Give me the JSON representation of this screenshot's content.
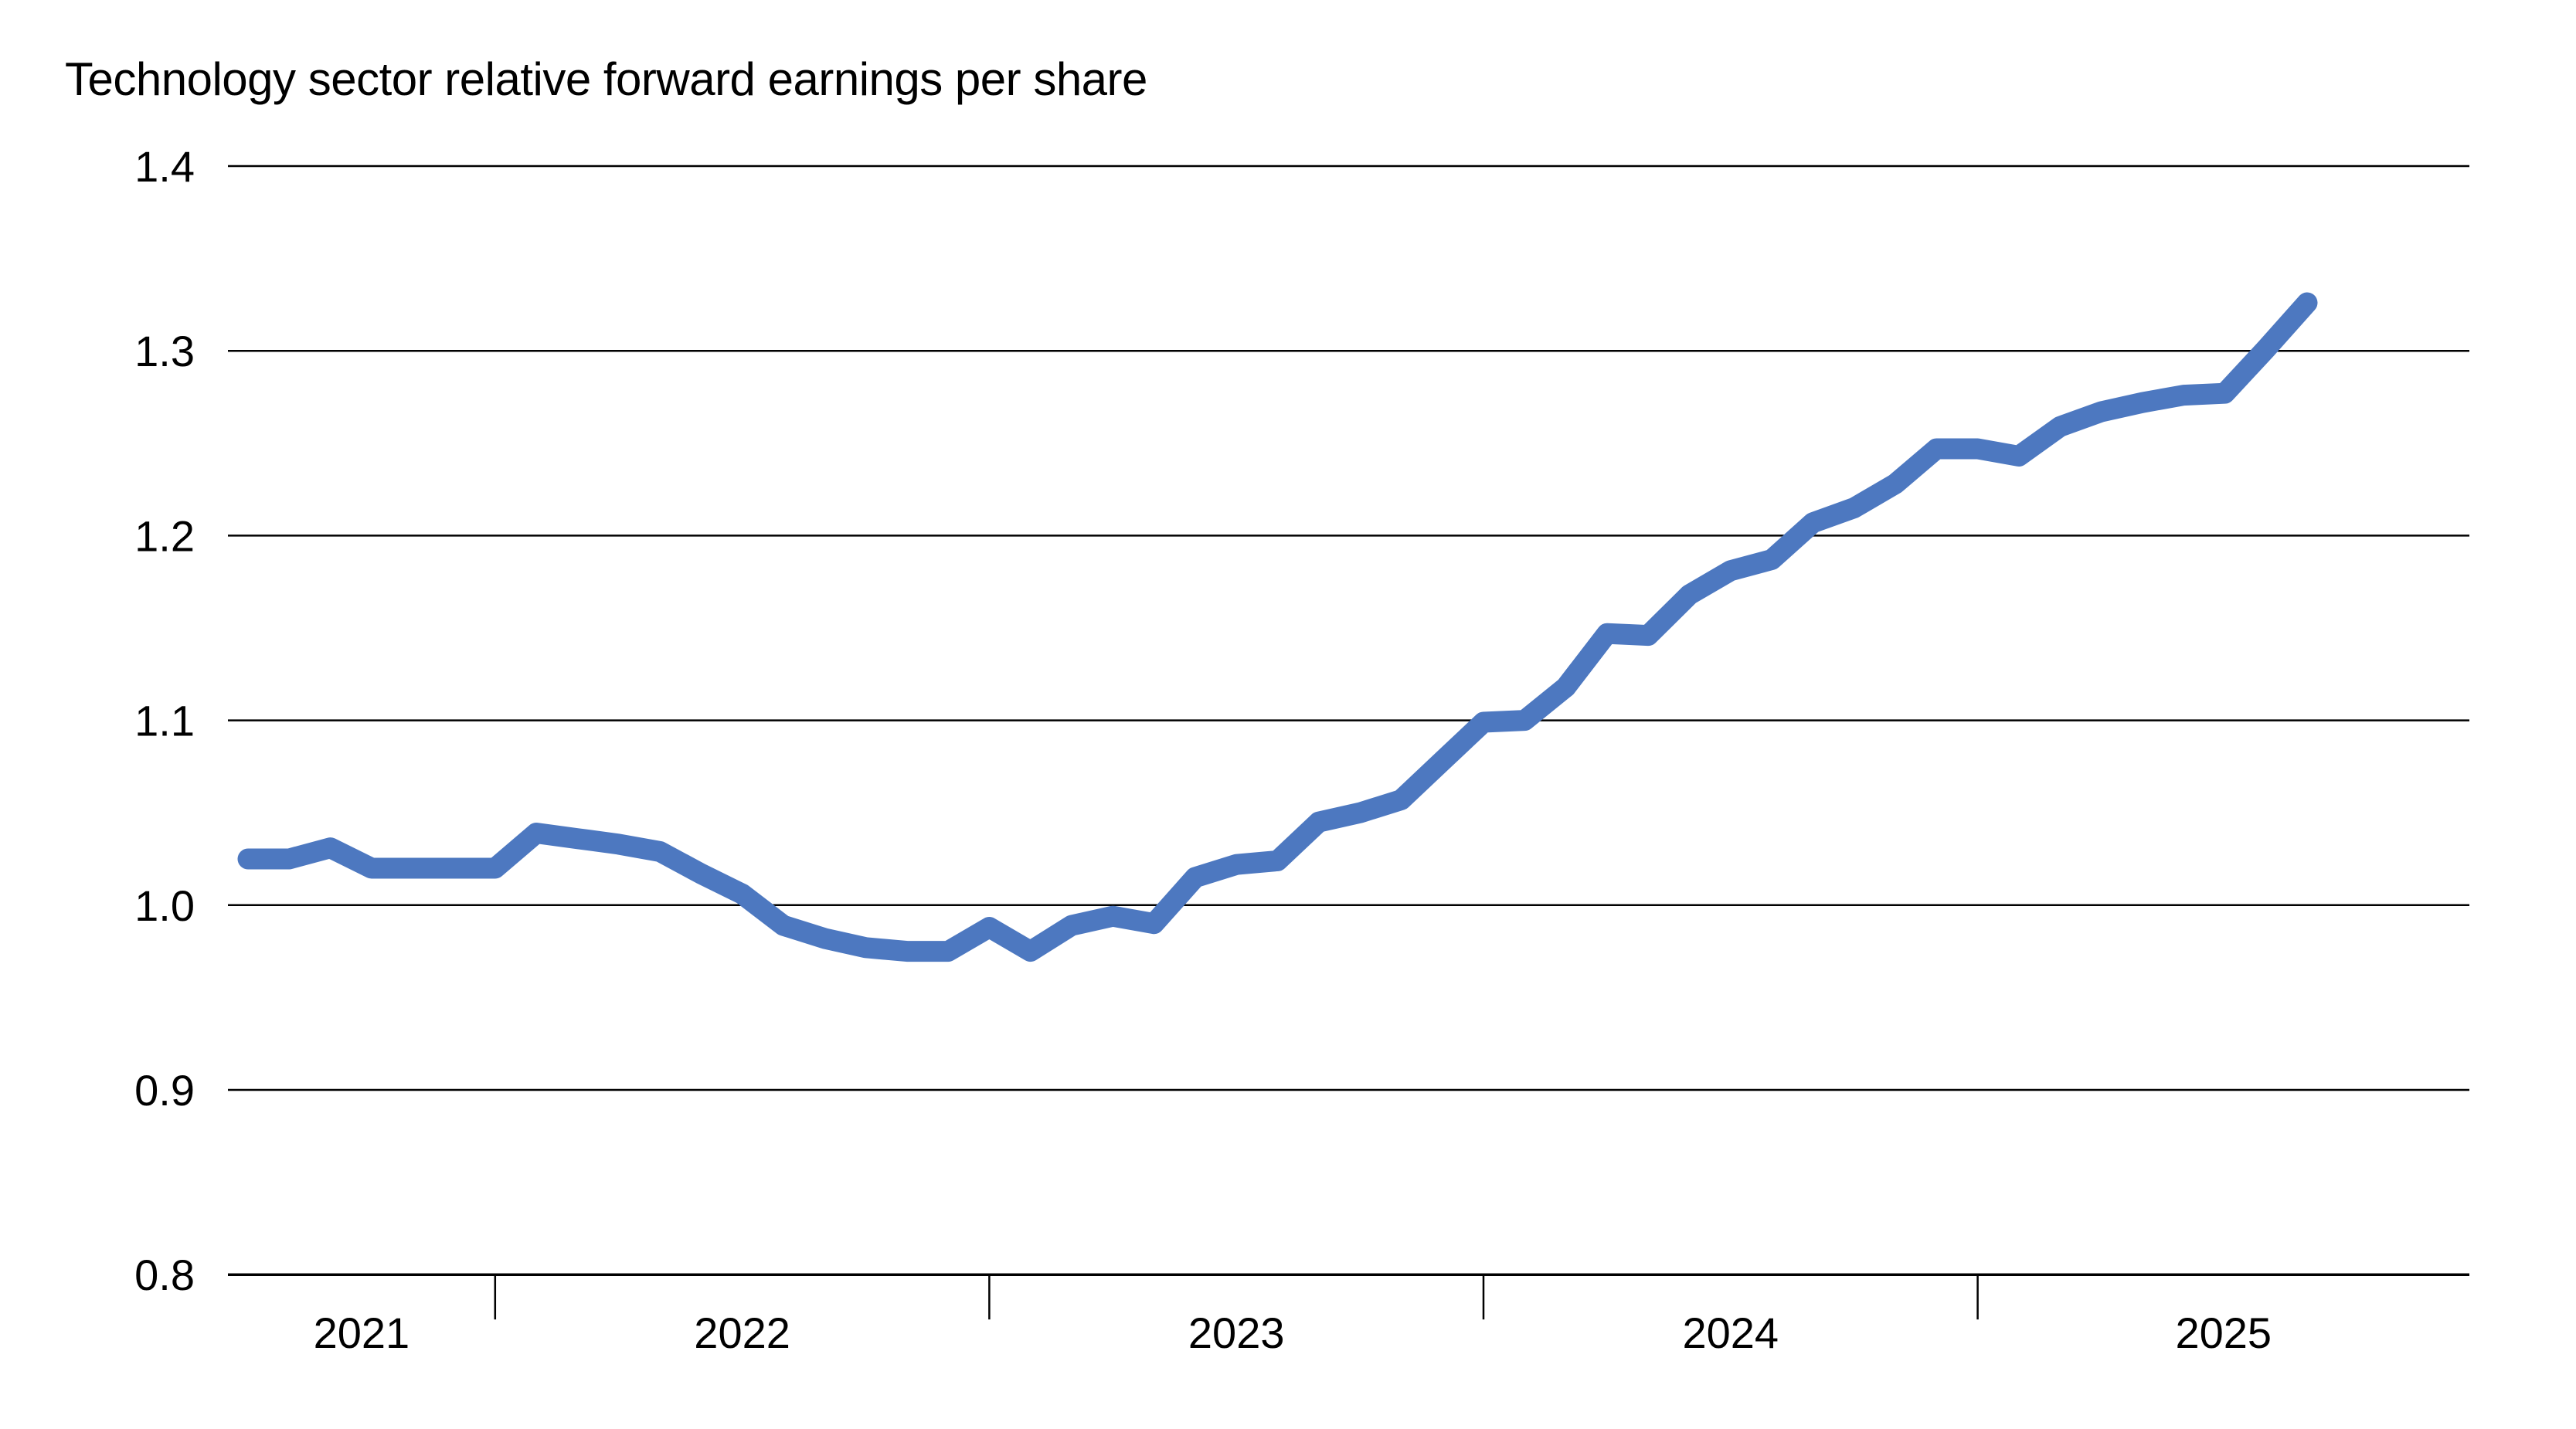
{
  "page": {
    "background": "#ffffff"
  },
  "chart_data": {
    "type": "line",
    "title": "Technology sector relative forward earnings per share",
    "xlabel": "",
    "ylabel": "",
    "grid": "horizontal",
    "legend": "none",
    "ylim": [
      0.8,
      1.4
    ],
    "y_ticks": {
      "values": [
        1.4,
        1.3,
        1.2,
        1.1,
        1.0,
        0.9,
        0.8
      ],
      "labels": [
        "1.4",
        "1.3",
        "1.2",
        "1.1",
        "1.0",
        "0.9",
        "0.8"
      ]
    },
    "x_ticks": {
      "year_labels": [
        "2021",
        "2022",
        "2023",
        "2024",
        "2025"
      ],
      "year_boundary_indices": [
        6,
        18,
        30,
        42
      ]
    },
    "x": [
      "2021-07",
      "2021-08",
      "2021-09",
      "2021-10",
      "2021-11",
      "2021-12",
      "2022-01",
      "2022-02",
      "2022-03",
      "2022-04",
      "2022-05",
      "2022-06",
      "2022-07",
      "2022-08",
      "2022-09",
      "2022-10",
      "2022-11",
      "2022-12",
      "2023-01",
      "2023-02",
      "2023-03",
      "2023-04",
      "2023-05",
      "2023-06",
      "2023-07",
      "2023-08",
      "2023-09",
      "2023-10",
      "2023-11",
      "2023-12",
      "2024-01",
      "2024-02",
      "2024-03",
      "2024-04",
      "2024-05",
      "2024-06",
      "2024-07",
      "2024-08",
      "2024-09",
      "2024-10",
      "2024-11",
      "2024-12",
      "2025-01",
      "2025-02",
      "2025-03",
      "2025-04",
      "2025-05",
      "2025-06",
      "2025-07",
      "2025-08",
      "2025-09"
    ],
    "series": [
      {
        "name": "Technology sector relative forward earnings per share",
        "color": "#4d78c0",
        "values": [
          1.025,
          1.025,
          1.031,
          1.02,
          1.02,
          1.02,
          1.02,
          1.039,
          1.036,
          1.033,
          1.029,
          1.017,
          1.006,
          0.989,
          0.982,
          0.977,
          0.975,
          0.975,
          0.988,
          0.975,
          0.989,
          0.994,
          0.99,
          1.015,
          1.022,
          1.024,
          1.045,
          1.05,
          1.057,
          1.078,
          1.099,
          1.1,
          1.118,
          1.147,
          1.146,
          1.168,
          1.181,
          1.187,
          1.207,
          1.215,
          1.228,
          1.247,
          1.247,
          1.243,
          1.259,
          1.267,
          1.272,
          1.276,
          1.277,
          1.301,
          1.326
        ]
      }
    ],
    "colors": {
      "line": "#4d78c0",
      "gridline": "#000000",
      "axis": "#000000",
      "text": "#000000",
      "background": "#ffffff"
    }
  }
}
